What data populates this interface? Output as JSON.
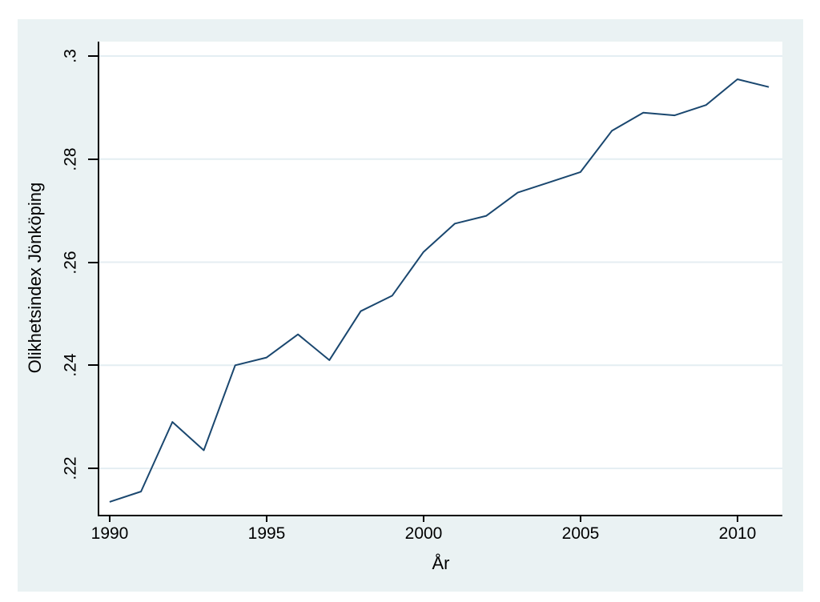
{
  "chart_data": {
    "type": "line",
    "title": "",
    "xlabel": "År",
    "ylabel": "Olikhetsindex Jönköping",
    "x": [
      1990,
      1991,
      1992,
      1993,
      1994,
      1995,
      1996,
      1997,
      1998,
      1999,
      2000,
      2001,
      2002,
      2003,
      2004,
      2005,
      2006,
      2007,
      2008,
      2009,
      2010,
      2011
    ],
    "series": [
      {
        "name": "Olikhetsindex Jönköping",
        "values": [
          0.2135,
          0.2155,
          0.229,
          0.2235,
          0.24,
          0.2415,
          0.246,
          0.241,
          0.2505,
          0.2535,
          0.262,
          0.2675,
          0.269,
          0.2735,
          0.2755,
          0.2775,
          0.2855,
          0.289,
          0.2885,
          0.2905,
          0.2955,
          0.294
        ]
      }
    ],
    "xlim": [
      1989.67,
      2011.43
    ],
    "ylim": [
      0.211,
      0.3028
    ],
    "xticks": [
      1990,
      1995,
      2000,
      2005,
      2010
    ],
    "xtick_labels": [
      "1990",
      "1995",
      "2000",
      "2005",
      "2010"
    ],
    "yticks": [
      0.22,
      0.24,
      0.26,
      0.28,
      0.3
    ],
    "ytick_labels": [
      ".22",
      ".24",
      ".26",
      ".28",
      ".3"
    ],
    "grid": "horizontal-only",
    "legend": "none",
    "colors": {
      "line": "#1a476f",
      "graph_background": "#eaf2f3",
      "plot_background": "#ffffff",
      "gridline": "#e4eef2",
      "axis": "#000000",
      "text": "#000000"
    }
  }
}
